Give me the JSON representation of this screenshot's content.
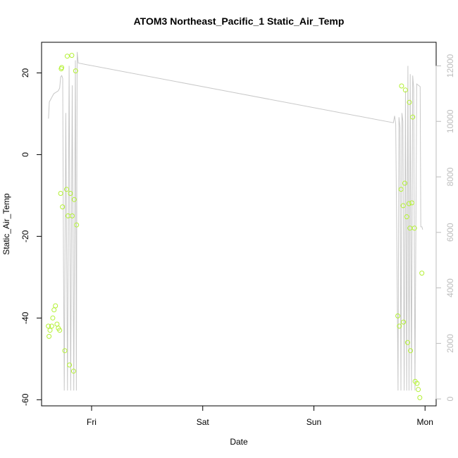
{
  "chart_data": {
    "type": "scatter",
    "title": "ATOM3 Northeast_Pacific_1 Static_Air_Temp",
    "xlabel": "Date",
    "ylabel": "Static_Air_Temp",
    "x_unit": "days since Thu 00:00",
    "xlim": [
      0.55,
      4.1
    ],
    "ylim": [
      -61.5,
      27.5
    ],
    "x_ticks": [
      {
        "label": "Fri",
        "value": 1
      },
      {
        "label": "Sat",
        "value": 2
      },
      {
        "label": "Sun",
        "value": 3
      },
      {
        "label": "Mon",
        "value": 4
      }
    ],
    "y_ticks": [
      -60,
      -40,
      -20,
      0,
      20
    ],
    "y2lim": [
      -250,
      12850
    ],
    "y2_ticks": [
      0,
      2000,
      4000,
      6000,
      8000,
      10000,
      12000
    ],
    "colors": {
      "points": "#b3f033",
      "altitude_line": "#c8c8c8",
      "right_axis": "#bdbdbd",
      "frame": "#000000"
    },
    "series": [
      {
        "role": "points",
        "x": [
          0.611,
          0.617,
          0.626,
          0.641,
          0.651,
          0.662,
          0.675,
          0.689,
          0.701,
          0.713,
          0.722,
          0.727,
          0.731,
          0.738,
          0.759,
          0.775,
          0.781,
          0.788,
          0.801,
          0.809,
          0.822,
          0.826,
          0.838,
          0.843,
          0.856,
          0.865,
          3.755,
          3.769,
          3.784,
          3.789,
          3.803,
          3.806,
          3.818,
          3.823,
          3.835,
          3.843,
          3.855,
          3.859,
          3.864,
          3.869,
          3.881,
          3.889,
          3.905,
          3.911,
          3.928,
          3.939,
          3.953,
          3.971
        ],
        "y": [
          -42,
          -44.5,
          -43,
          -42,
          -40,
          -38,
          -37,
          -41.5,
          -42.5,
          -43,
          -9.5,
          21,
          21.3,
          -12.8,
          -48,
          -8.5,
          24.1,
          -15,
          -51.5,
          -9.5,
          24.3,
          -15,
          -53,
          -11,
          20.5,
          -17.2,
          -39.5,
          -42,
          -8.5,
          16.8,
          -12.5,
          -41,
          -7,
          15.8,
          -15.2,
          -46,
          -12,
          12.8,
          -18,
          -48,
          -11.8,
          9.2,
          -18,
          -55.5,
          -56,
          -57.5,
          -59.5,
          -29
        ]
      },
      {
        "role": "altitude_line",
        "x": [
          0.612,
          0.62,
          0.64,
          0.66,
          0.68,
          0.7,
          0.713,
          0.722,
          0.731,
          0.74,
          0.747,
          0.754,
          0.768,
          0.783,
          0.798,
          0.812,
          0.826,
          0.84,
          0.854,
          0.863,
          0.87,
          0.88,
          3.715,
          3.726,
          3.736,
          3.746,
          3.757,
          3.765,
          3.774,
          3.783,
          3.792,
          3.801,
          3.812,
          3.824,
          3.835,
          3.846,
          3.856,
          3.867,
          3.878,
          3.889,
          3.898,
          3.909,
          3.925,
          3.956,
          3.962,
          3.972,
          3.979
        ],
        "y": [
          10100,
          10700,
          10850,
          11000,
          11050,
          11100,
          11200,
          11600,
          11650,
          11550,
          5000,
          300,
          10300,
          300,
          12000,
          300,
          11300,
          300,
          12200,
          300,
          12500,
          12100,
          9950,
          10200,
          9900,
          5500,
          300,
          10150,
          9800,
          300,
          10300,
          10000,
          300,
          11100,
          300,
          12000,
          300,
          11700,
          300,
          11650,
          11200,
          300,
          11350,
          11250,
          6200,
          6200,
          6100
        ]
      }
    ]
  }
}
